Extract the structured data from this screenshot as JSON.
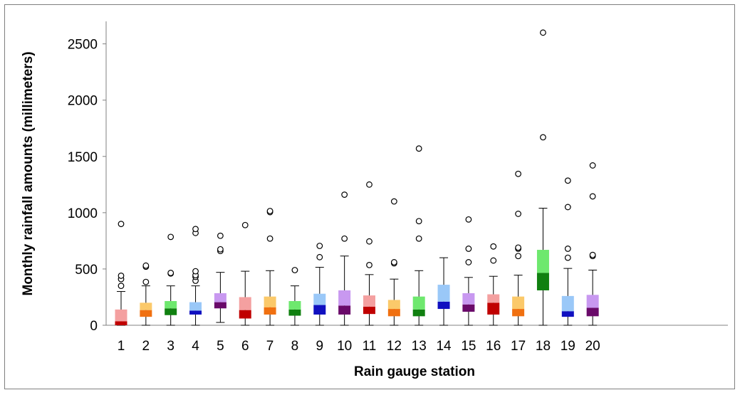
{
  "chart_data": {
    "type": "boxplot",
    "title": "",
    "xlabel": "Rain gauge station",
    "ylabel": "Monthly rainfall amounts (millimeters)",
    "ylim": [
      0,
      2700
    ],
    "yticks": [
      0,
      500,
      1000,
      1500,
      2000,
      2500
    ],
    "grid": false,
    "categories": [
      "1",
      "2",
      "3",
      "4",
      "5",
      "6",
      "7",
      "8",
      "9",
      "10",
      "11",
      "12",
      "13",
      "14",
      "15",
      "16",
      "17",
      "18",
      "19",
      "20"
    ],
    "boxes": [
      {
        "station": "1",
        "min": 0,
        "q1": 0,
        "median": 35,
        "q3": 140,
        "max": 300,
        "outliers": [
          350,
          410,
          440,
          900
        ],
        "light": "#f4a0a0",
        "dark": "#c00000"
      },
      {
        "station": "2",
        "min": 0,
        "q1": 75,
        "median": 135,
        "q3": 200,
        "max": 350,
        "outliers": [
          385,
          520,
          530
        ],
        "light": "#fbc96a",
        "dark": "#f07010"
      },
      {
        "station": "3",
        "min": 0,
        "q1": 90,
        "median": 150,
        "q3": 215,
        "max": 350,
        "outliers": [
          460,
          465,
          785
        ],
        "light": "#6ee86e",
        "dark": "#108010"
      },
      {
        "station": "4",
        "min": 0,
        "q1": 95,
        "median": 130,
        "q3": 205,
        "max": 350,
        "outliers": [
          395,
          430,
          445,
          480,
          820,
          855
        ],
        "light": "#9ac8f8",
        "dark": "#1010c0"
      },
      {
        "station": "5",
        "min": 25,
        "q1": 150,
        "median": 205,
        "q3": 285,
        "max": 470,
        "outliers": [
          660,
          675,
          795
        ],
        "light": "#c898f0",
        "dark": "#6a0a6a"
      },
      {
        "station": "6",
        "min": 0,
        "q1": 60,
        "median": 135,
        "q3": 250,
        "max": 480,
        "outliers": [
          890
        ],
        "light": "#f4a0a0",
        "dark": "#c00000"
      },
      {
        "station": "7",
        "min": 0,
        "q1": 95,
        "median": 160,
        "q3": 255,
        "max": 485,
        "outliers": [
          770,
          1005,
          1015
        ],
        "light": "#fbc96a",
        "dark": "#f07010"
      },
      {
        "station": "8",
        "min": 0,
        "q1": 85,
        "median": 140,
        "q3": 215,
        "max": 350,
        "outliers": [
          490
        ],
        "light": "#6ee86e",
        "dark": "#108010"
      },
      {
        "station": "9",
        "min": 0,
        "q1": 95,
        "median": 180,
        "q3": 280,
        "max": 515,
        "outliers": [
          605,
          705
        ],
        "light": "#9ac8f8",
        "dark": "#1010c0"
      },
      {
        "station": "10",
        "min": 0,
        "q1": 95,
        "median": 175,
        "q3": 310,
        "max": 615,
        "outliers": [
          770,
          1160
        ],
        "light": "#c898f0",
        "dark": "#6a0a6a"
      },
      {
        "station": "11",
        "min": 0,
        "q1": 100,
        "median": 165,
        "q3": 265,
        "max": 450,
        "outliers": [
          535,
          745,
          1250
        ],
        "light": "#f4a0a0",
        "dark": "#c00000"
      },
      {
        "station": "12",
        "min": 0,
        "q1": 80,
        "median": 145,
        "q3": 225,
        "max": 410,
        "outliers": [
          550,
          560,
          1100
        ],
        "light": "#fbc96a",
        "dark": "#f07010"
      },
      {
        "station": "13",
        "min": 0,
        "q1": 80,
        "median": 140,
        "q3": 255,
        "max": 485,
        "outliers": [
          770,
          925,
          1570
        ],
        "light": "#6ee86e",
        "dark": "#108010"
      },
      {
        "station": "14",
        "min": 0,
        "q1": 145,
        "median": 210,
        "q3": 360,
        "max": 600,
        "outliers": [],
        "light": "#9ac8f8",
        "dark": "#1010c0"
      },
      {
        "station": "15",
        "min": 0,
        "q1": 120,
        "median": 185,
        "q3": 285,
        "max": 425,
        "outliers": [
          560,
          680,
          940
        ],
        "light": "#c898f0",
        "dark": "#6a0a6a"
      },
      {
        "station": "16",
        "min": 0,
        "q1": 95,
        "median": 200,
        "q3": 275,
        "max": 435,
        "outliers": [
          575,
          700
        ],
        "light": "#f4a0a0",
        "dark": "#c00000"
      },
      {
        "station": "17",
        "min": 0,
        "q1": 80,
        "median": 145,
        "q3": 255,
        "max": 445,
        "outliers": [
          615,
          680,
          690,
          990,
          1345
        ],
        "light": "#fbc96a",
        "dark": "#f07010"
      },
      {
        "station": "18",
        "min": 0,
        "q1": 310,
        "median": 465,
        "q3": 670,
        "max": 1040,
        "outliers": [
          1670,
          2600
        ],
        "light": "#6ee86e",
        "dark": "#108010"
      },
      {
        "station": "19",
        "min": 0,
        "q1": 75,
        "median": 125,
        "q3": 260,
        "max": 505,
        "outliers": [
          600,
          680,
          1050,
          1285
        ],
        "light": "#9ac8f8",
        "dark": "#1010c0"
      },
      {
        "station": "20",
        "min": 0,
        "q1": 80,
        "median": 155,
        "q3": 270,
        "max": 490,
        "outliers": [
          615,
          625,
          1145,
          1420
        ],
        "light": "#c898f0",
        "dark": "#6a0a6a"
      }
    ]
  }
}
